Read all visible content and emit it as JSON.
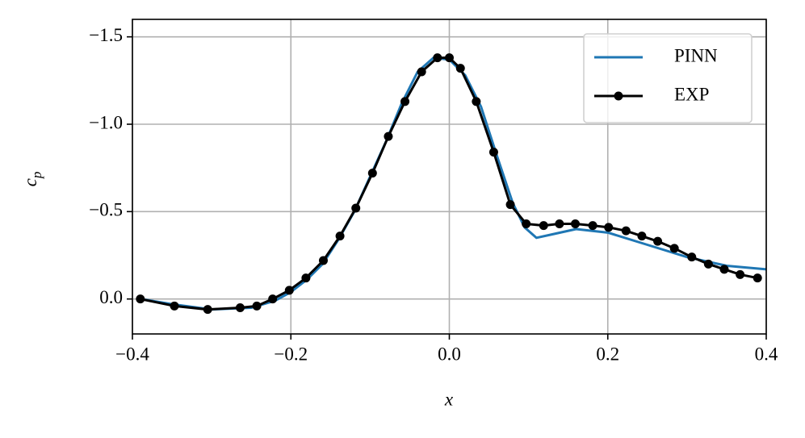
{
  "chart_data": {
    "type": "line",
    "xlabel": "x",
    "ylabel": {
      "text": "c",
      "subscript": "p"
    },
    "xlim": [
      -0.4,
      0.4
    ],
    "xticks": [
      {
        "value": -0.4,
        "label": "−0.4"
      },
      {
        "value": -0.2,
        "label": "−0.2"
      },
      {
        "value": 0.0,
        "label": "0.0"
      },
      {
        "value": 0.2,
        "label": "0.2"
      },
      {
        "value": 0.4,
        "label": "0.4"
      }
    ],
    "ylim": [
      -1.6,
      0.2
    ],
    "y_inverted": true,
    "yticks": [
      {
        "value": -1.5,
        "label": "−1.5"
      },
      {
        "value": -1.0,
        "label": "−1.0"
      },
      {
        "value": -0.5,
        "label": "−0.5"
      },
      {
        "value": 0.0,
        "label": "0.0"
      }
    ],
    "grid": true,
    "legend": "upper right",
    "series": [
      {
        "name": "PINN",
        "color": "#1f77b4",
        "markers": false,
        "x": [
          -0.39,
          -0.35,
          -0.3,
          -0.25,
          -0.22,
          -0.2,
          -0.18,
          -0.16,
          -0.14,
          -0.12,
          -0.1,
          -0.08,
          -0.06,
          -0.04,
          -0.02,
          0.0,
          0.02,
          0.04,
          0.06,
          0.08,
          0.095,
          0.11,
          0.13,
          0.16,
          0.2,
          0.25,
          0.3,
          0.35,
          0.4
        ],
        "values": [
          0.0,
          0.03,
          0.06,
          0.05,
          0.01,
          -0.04,
          -0.11,
          -0.2,
          -0.34,
          -0.5,
          -0.7,
          -0.9,
          -1.12,
          -1.3,
          -1.38,
          -1.37,
          -1.28,
          -1.1,
          -0.82,
          -0.55,
          -0.41,
          -0.35,
          -0.37,
          -0.4,
          -0.38,
          -0.31,
          -0.24,
          -0.19,
          -0.17
        ]
      },
      {
        "name": "EXP",
        "color": "#000000",
        "markers": true,
        "x": [
          -0.39,
          -0.347,
          -0.305,
          -0.264,
          -0.243,
          -0.223,
          -0.202,
          -0.181,
          -0.159,
          -0.138,
          -0.118,
          -0.097,
          -0.077,
          -0.056,
          -0.035,
          -0.015,
          0.0,
          0.014,
          0.034,
          0.056,
          0.077,
          0.097,
          0.119,
          0.139,
          0.159,
          0.181,
          0.201,
          0.223,
          0.243,
          0.263,
          0.284,
          0.306,
          0.327,
          0.347,
          0.367,
          0.389
        ],
        "values": [
          0.0,
          0.04,
          0.06,
          0.05,
          0.04,
          0.0,
          -0.05,
          -0.12,
          -0.22,
          -0.36,
          -0.52,
          -0.72,
          -0.93,
          -1.13,
          -1.3,
          -1.38,
          -1.38,
          -1.32,
          -1.13,
          -0.84,
          -0.54,
          -0.43,
          -0.42,
          -0.43,
          -0.43,
          -0.42,
          -0.41,
          -0.39,
          -0.36,
          -0.33,
          -0.29,
          -0.24,
          -0.2,
          -0.17,
          -0.14,
          -0.12
        ]
      }
    ]
  }
}
